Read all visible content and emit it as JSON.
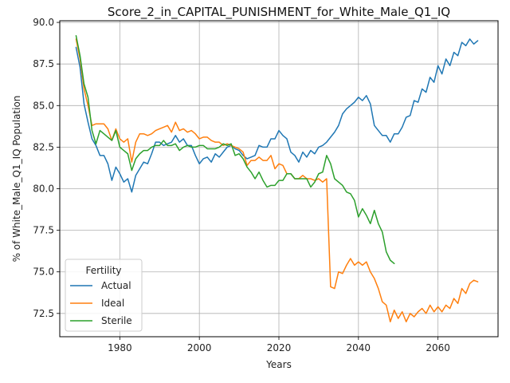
{
  "chart_data": {
    "type": "line",
    "title": "Score_2_in_CAPITAL_PUNISHMENT_for_White_Male_Q1_IQ",
    "xlabel": "Years",
    "ylabel": "% of White_Male_Q1_IQ Population",
    "xlim": [
      1964.9,
      2075.1
    ],
    "ylim": [
      71.1,
      90.1
    ],
    "xticks": [
      1980,
      2000,
      2020,
      2040,
      2060
    ],
    "yticks": [
      72.5,
      75.0,
      77.5,
      80.0,
      82.5,
      85.0,
      87.5,
      90.0
    ],
    "ytick_labels": [
      "72.5",
      "75.0",
      "77.5",
      "80.0",
      "82.5",
      "85.0",
      "87.5",
      "90.0"
    ],
    "grid": true,
    "legend": {
      "title": "Fertility",
      "position": "lower-left"
    },
    "series": [
      {
        "name": "Actual",
        "color": "#1f77b4",
        "x": [
          1969,
          1970,
          1971,
          1972,
          1973,
          1974,
          1975,
          1976,
          1977,
          1978,
          1979,
          1980,
          1981,
          1982,
          1983,
          1984,
          1985,
          1986,
          1987,
          1988,
          1989,
          1990,
          1991,
          1992,
          1993,
          1994,
          1995,
          1996,
          1997,
          1998,
          1999,
          2000,
          2001,
          2002,
          2003,
          2004,
          2005,
          2006,
          2007,
          2008,
          2009,
          2010,
          2011,
          2012,
          2013,
          2014,
          2015,
          2016,
          2017,
          2018,
          2019,
          2020,
          2021,
          2022,
          2023,
          2024,
          2025,
          2026,
          2027,
          2028,
          2029,
          2030,
          2031,
          2032,
          2033,
          2034,
          2035,
          2036,
          2037,
          2038,
          2039,
          2040,
          2041,
          2042,
          2043,
          2044,
          2045,
          2046,
          2047,
          2048,
          2049,
          2050,
          2051,
          2052,
          2053,
          2054,
          2055,
          2056,
          2057,
          2058,
          2059,
          2060,
          2061,
          2062,
          2063,
          2064,
          2065,
          2066,
          2067,
          2068,
          2069,
          2070
        ],
        "values": [
          88.5,
          87.3,
          85.1,
          84.0,
          83.0,
          82.6,
          82.0,
          82.0,
          81.5,
          80.5,
          81.3,
          80.9,
          80.4,
          80.6,
          79.8,
          80.8,
          81.2,
          81.6,
          81.5,
          82.1,
          82.8,
          82.8,
          82.6,
          82.7,
          82.8,
          83.2,
          82.8,
          83.0,
          82.6,
          82.6,
          82.0,
          81.5,
          81.8,
          81.9,
          81.6,
          82.1,
          81.9,
          82.2,
          82.5,
          82.6,
          82.4,
          82.3,
          82.0,
          81.8,
          81.9,
          82.0,
          82.6,
          82.5,
          82.5,
          83.0,
          83.0,
          83.5,
          83.2,
          83.0,
          82.2,
          82.0,
          81.6,
          82.2,
          81.9,
          82.3,
          82.1,
          82.5,
          82.6,
          82.8,
          83.1,
          83.4,
          83.8,
          84.5,
          84.8,
          85.0,
          85.2,
          85.5,
          85.3,
          85.6,
          85.1,
          83.8,
          83.5,
          83.2,
          83.2,
          82.8,
          83.3,
          83.3,
          83.7,
          84.3,
          84.4,
          85.3,
          85.2,
          86.0,
          85.8,
          86.7,
          86.4,
          87.4,
          86.9,
          87.8,
          87.4,
          88.2,
          88.0,
          88.8,
          88.6,
          89.0,
          88.7,
          88.9
        ]
      },
      {
        "name": "Ideal",
        "color": "#ff7f0e",
        "x": [
          1969,
          1970,
          1971,
          1972,
          1973,
          1974,
          1975,
          1976,
          1977,
          1978,
          1979,
          1980,
          1981,
          1982,
          1983,
          1984,
          1985,
          1986,
          1987,
          1988,
          1989,
          1990,
          1991,
          1992,
          1993,
          1994,
          1995,
          1996,
          1997,
          1998,
          1999,
          2000,
          2001,
          2002,
          2003,
          2004,
          2005,
          2006,
          2007,
          2008,
          2009,
          2010,
          2011,
          2012,
          2013,
          2014,
          2015,
          2016,
          2017,
          2018,
          2019,
          2020,
          2021,
          2022,
          2023,
          2024,
          2025,
          2026,
          2027,
          2028,
          2029,
          2030,
          2031,
          2032,
          2033,
          2034,
          2035,
          2036,
          2037,
          2038,
          2039,
          2040,
          2041,
          2042,
          2043,
          2044,
          2045,
          2046,
          2047,
          2048,
          2049,
          2050,
          2051,
          2052,
          2053,
          2054,
          2055,
          2056,
          2057,
          2058,
          2059,
          2060,
          2061,
          2062,
          2063,
          2064,
          2065,
          2066,
          2067,
          2068,
          2069,
          2070
        ],
        "values": [
          89.0,
          87.8,
          86.0,
          85.0,
          83.8,
          83.9,
          83.9,
          83.9,
          83.6,
          82.9,
          83.6,
          83.0,
          82.8,
          83.0,
          81.6,
          82.8,
          83.3,
          83.3,
          83.2,
          83.3,
          83.5,
          83.6,
          83.7,
          83.8,
          83.4,
          84.0,
          83.5,
          83.6,
          83.4,
          83.5,
          83.3,
          83.0,
          83.1,
          83.1,
          82.9,
          82.8,
          82.8,
          82.6,
          82.7,
          82.6,
          82.5,
          82.4,
          82.2,
          81.4,
          81.7,
          81.7,
          81.9,
          81.7,
          81.7,
          82.0,
          81.2,
          81.5,
          81.4,
          80.9,
          80.9,
          80.6,
          80.6,
          80.8,
          80.6,
          80.6,
          80.5,
          80.6,
          80.4,
          80.6,
          74.1,
          74.0,
          75.0,
          74.9,
          75.4,
          75.8,
          75.4,
          75.6,
          75.4,
          75.6,
          75.0,
          74.6,
          74.0,
          73.2,
          73.0,
          72.0,
          72.7,
          72.2,
          72.6,
          72.0,
          72.5,
          72.3,
          72.6,
          72.8,
          72.5,
          73.0,
          72.6,
          72.9,
          72.6,
          73.0,
          72.8,
          73.4,
          73.1,
          74.0,
          73.7,
          74.3,
          74.5,
          74.4
        ]
      },
      {
        "name": "Sterile",
        "color": "#2ca02c",
        "x": [
          1969,
          1970,
          1971,
          1972,
          1973,
          1974,
          1975,
          1976,
          1977,
          1978,
          1979,
          1980,
          1981,
          1982,
          1983,
          1984,
          1985,
          1986,
          1987,
          1988,
          1989,
          1990,
          1991,
          1992,
          1993,
          1994,
          1995,
          1996,
          1997,
          1998,
          1999,
          2000,
          2001,
          2002,
          2003,
          2004,
          2005,
          2006,
          2007,
          2008,
          2009,
          2010,
          2011,
          2012,
          2013,
          2014,
          2015,
          2016,
          2017,
          2018,
          2019,
          2020,
          2021,
          2022,
          2023,
          2024,
          2025,
          2026,
          2027,
          2028,
          2029,
          2030,
          2031,
          2032,
          2033,
          2034,
          2035,
          2036,
          2037,
          2038,
          2039,
          2040,
          2041,
          2042,
          2043,
          2044,
          2045,
          2046,
          2047,
          2048,
          2049
        ],
        "values": [
          89.2,
          88.0,
          86.3,
          85.5,
          83.5,
          82.7,
          83.5,
          83.3,
          83.1,
          82.9,
          83.5,
          82.5,
          82.3,
          82.1,
          81.1,
          81.8,
          82.1,
          82.3,
          82.3,
          82.5,
          82.6,
          82.6,
          82.9,
          82.6,
          82.6,
          82.7,
          82.3,
          82.5,
          82.6,
          82.5,
          82.5,
          82.6,
          82.6,
          82.4,
          82.4,
          82.4,
          82.5,
          82.7,
          82.6,
          82.7,
          82.0,
          82.1,
          81.8,
          81.3,
          81.0,
          80.6,
          81.0,
          80.5,
          80.1,
          80.2,
          80.2,
          80.5,
          80.5,
          80.9,
          80.9,
          80.6,
          80.6,
          80.6,
          80.6,
          80.1,
          80.4,
          80.9,
          81.0,
          82.0,
          81.5,
          80.6,
          80.4,
          80.2,
          79.8,
          79.7,
          79.3,
          78.3,
          78.8,
          78.4,
          77.9,
          78.7,
          77.9,
          77.4,
          76.2,
          75.7,
          75.5
        ]
      }
    ]
  }
}
